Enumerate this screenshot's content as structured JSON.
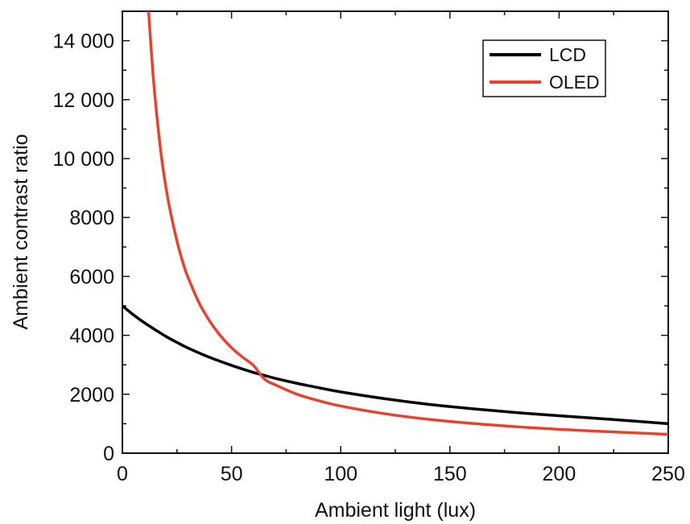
{
  "chart_data": {
    "type": "line",
    "title": "",
    "xlabel": "Ambient light (lux)",
    "ylabel": "Ambient contrast ratio",
    "xlim": [
      0,
      250
    ],
    "ylim": [
      0,
      15000
    ],
    "xticks": [
      0,
      50,
      100,
      150,
      200,
      250
    ],
    "xtick_labels": [
      "0",
      "50",
      "100",
      "150",
      "200",
      "250"
    ],
    "yticks": [
      0,
      2000,
      4000,
      6000,
      8000,
      10000,
      12000,
      14000
    ],
    "ytick_labels": [
      "0",
      "2000",
      "4000",
      "6000",
      "8000",
      "10 000",
      "12 000",
      "14 000"
    ],
    "grid": false,
    "legend_position": "top-right",
    "series": [
      {
        "name": "LCD",
        "color": "#000000",
        "x": [
          0,
          5,
          10,
          15,
          20,
          25,
          30,
          40,
          50,
          60,
          65,
          70,
          80,
          90,
          100,
          120,
          140,
          160,
          180,
          200,
          225,
          250
        ],
        "y": [
          5000,
          4700,
          4430,
          4190,
          3960,
          3760,
          3570,
          3250,
          2980,
          2740,
          2640,
          2540,
          2370,
          2220,
          2080,
          1850,
          1660,
          1510,
          1380,
          1270,
          1140,
          1000
        ]
      },
      {
        "name": "OLED",
        "color": "#e8422f",
        "x": [
          12,
          14,
          16,
          18,
          20,
          22,
          25,
          28,
          30,
          35,
          40,
          45,
          50,
          55,
          60,
          65,
          70,
          80,
          90,
          100,
          120,
          140,
          160,
          180,
          200,
          225,
          250
        ],
        "y": [
          15000,
          12900,
          11300,
          10000,
          9000,
          8200,
          7200,
          6400,
          5980,
          5120,
          4480,
          3980,
          3580,
          3260,
          2980,
          2520,
          2320,
          2000,
          1780,
          1600,
          1340,
          1150,
          1010,
          900,
          810,
          720,
          640
        ]
      }
    ]
  }
}
